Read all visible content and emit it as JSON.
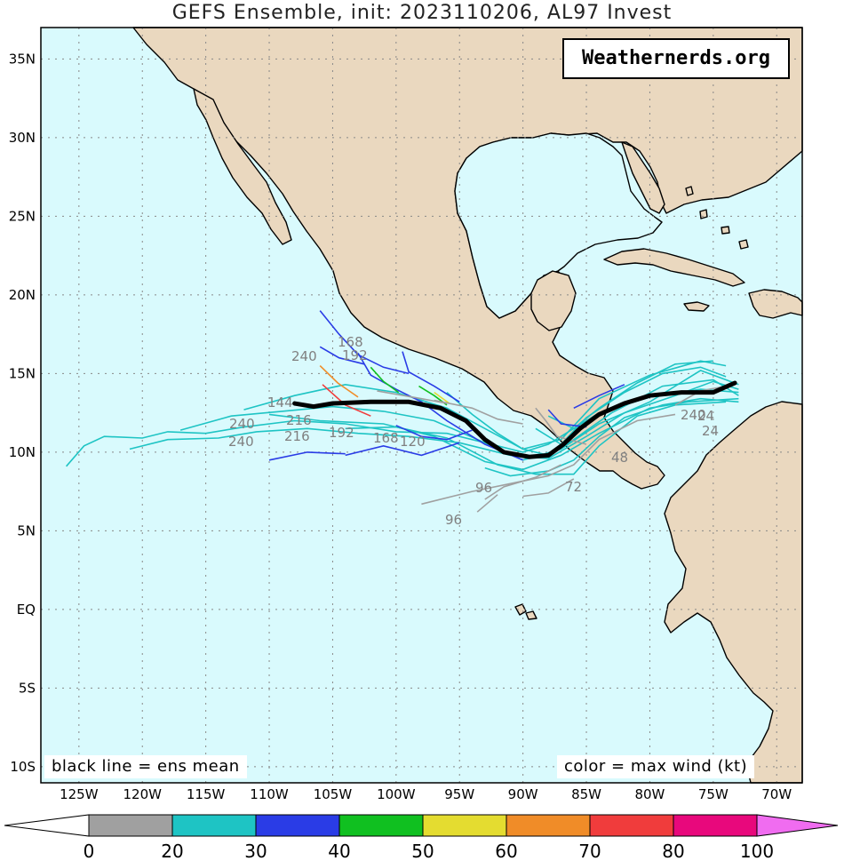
{
  "title": "GEFS Ensemble, init: 2023110206, AL97 Invest",
  "brand": "Weathernerds.org",
  "notes": {
    "left": "black line = ens mean",
    "right": "color = max wind (kt)"
  },
  "axes": {
    "lat_labels": [
      "35N",
      "30N",
      "25N",
      "20N",
      "15N",
      "10N",
      "5N",
      "EQ",
      "5S",
      "10S"
    ],
    "lon_labels": [
      "125W",
      "120W",
      "115W",
      "110W",
      "105W",
      "100W",
      "95W",
      "90W",
      "85W",
      "80W",
      "75W",
      "70W"
    ]
  },
  "colors": {
    "ocean": "#d9fafd",
    "land": "#ead8bf",
    "grid": "#888888",
    "mean_track": "#000000"
  },
  "colorbar": {
    "labels": [
      "0",
      "20",
      "30",
      "40",
      "50",
      "60",
      "70",
      "80",
      "100"
    ],
    "colors": [
      "#a0a0a0",
      "#1ec4c4",
      "#2a3ce6",
      "#10c020",
      "#e4dc30",
      "#f08c28",
      "#f03c3c",
      "#e8087c",
      "#f06cf0"
    ]
  },
  "track_hour_labels": [
    "192",
    "168",
    "240",
    "144",
    "240",
    "216",
    "240",
    "192",
    "216",
    "168",
    "120",
    "96",
    "96",
    "24",
    "24",
    "240",
    "48",
    "72"
  ],
  "chart_data": {
    "type": "map",
    "mean_track": {
      "name": "ens mean",
      "points": [
        [
          -108.0,
          13.1
        ],
        [
          -106.5,
          12.9
        ],
        [
          -105,
          13.1
        ],
        [
          -102,
          13.2
        ],
        [
          -99,
          13.2
        ],
        [
          -96.5,
          12.8
        ],
        [
          -94.5,
          12.0
        ],
        [
          -93,
          10.8
        ],
        [
          -91.5,
          10.0
        ],
        [
          -89.5,
          9.7
        ],
        [
          -88,
          9.8
        ],
        [
          -86.8,
          10.5
        ],
        [
          -85.5,
          11.5
        ],
        [
          -84,
          12.4
        ],
        [
          -82,
          13.1
        ],
        [
          -80,
          13.6
        ],
        [
          -77.5,
          13.8
        ],
        [
          -75,
          13.8
        ],
        [
          -73.3,
          14.4
        ]
      ]
    },
    "wind_scale_kt": [
      0,
      20,
      30,
      40,
      50,
      60,
      70,
      80,
      100
    ]
  }
}
